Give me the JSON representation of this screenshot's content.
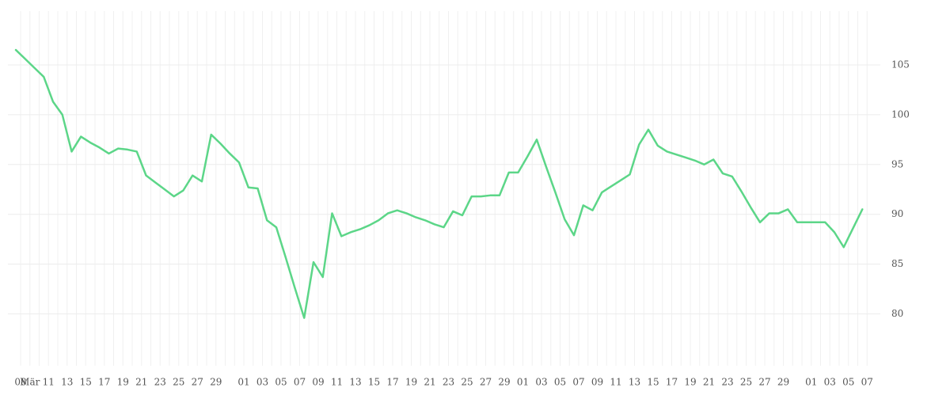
{
  "chart_data": {
    "type": "line",
    "categories": [
      "08",
      "Mär",
      null,
      "11",
      null,
      "13",
      null,
      "15",
      null,
      "17",
      null,
      "19",
      null,
      "21",
      null,
      "23",
      null,
      "25",
      null,
      "27",
      null,
      "29",
      null,
      null,
      "01",
      null,
      "03",
      null,
      "05",
      null,
      "07",
      null,
      "09",
      null,
      "11",
      null,
      "13",
      null,
      "15",
      null,
      "17",
      null,
      "19",
      null,
      "21",
      null,
      "23",
      null,
      "25",
      null,
      "27",
      null,
      "29",
      null,
      "01",
      null,
      "03",
      null,
      "05",
      null,
      "07",
      null,
      "09",
      null,
      "11",
      null,
      "13",
      null,
      "15",
      null,
      "17",
      null,
      "19",
      null,
      "21",
      null,
      "23",
      null,
      "25",
      null,
      "27",
      null,
      "29",
      null,
      null,
      "01",
      null,
      "03",
      null,
      "05",
      null,
      "07"
    ],
    "values": [
      106.5,
      105.6,
      104.7,
      103.8,
      101.3,
      100.0,
      96.3,
      97.8,
      97.2,
      96.7,
      96.1,
      96.6,
      96.5,
      96.3,
      93.9,
      93.2,
      92.5,
      91.8,
      92.4,
      93.9,
      93.3,
      98.0,
      97.1,
      96.1,
      95.2,
      92.7,
      92.6,
      89.4,
      88.7,
      85.7,
      82.6,
      79.6,
      85.2,
      83.7,
      90.1,
      87.8,
      88.2,
      88.5,
      88.9,
      89.4,
      90.1,
      90.4,
      90.1,
      89.7,
      89.4,
      89.0,
      88.7,
      90.3,
      89.9,
      91.8,
      91.8,
      91.9,
      91.9,
      94.2,
      94.2,
      95.8,
      97.5,
      94.8,
      92.2,
      89.5,
      87.9,
      90.9,
      90.4,
      92.2,
      92.8,
      93.4,
      94.0,
      97.0,
      98.5,
      96.9,
      96.3,
      96.0,
      95.7,
      95.4,
      95.0,
      95.5,
      94.1,
      93.8,
      92.3,
      90.7,
      89.2,
      90.1,
      90.1,
      90.5,
      89.2,
      89.2,
      89.2,
      89.2,
      88.2,
      86.7,
      88.6,
      90.5
    ],
    "color": "#5cd688",
    "ylim": [
      74.8,
      110.4
    ],
    "yticks": [
      80,
      85,
      90,
      95,
      100,
      105
    ],
    "grid": true
  }
}
